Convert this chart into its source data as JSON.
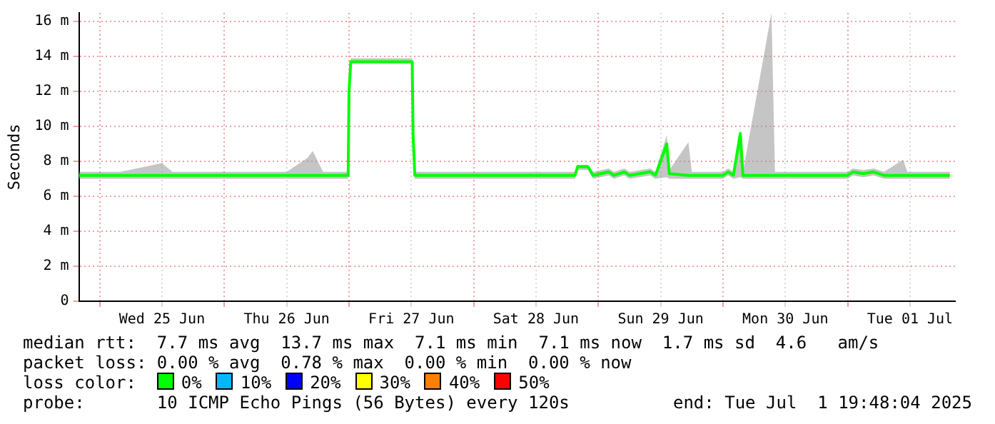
{
  "chart_data": {
    "type": "line",
    "ylabel": "Seconds",
    "legend_title": "loss color:",
    "legend": "bottom",
    "grid": true,
    "marker": "none",
    "line_style": "solid",
    "annotations": [
      "median rtt:  7.7 ms avg  13.7 ms max  7.1 ms min  7.1 ms now  1.7 ms sd  4.6   am/s",
      "packet loss: 0.00 % avg  0.78 % max  0.00 % min  0.00 % now",
      "probe:       10 ICMP Echo Pings (56 Bytes) every 120s",
      "end: Tue Jul  1 19:48:04 2025"
    ],
    "xlim": [
      "2025-06-24T20:00",
      "2025-07-01T20:40"
    ],
    "xticks": [
      {
        "value": "2025-06-25T00:00",
        "label": null
      },
      {
        "value": "2025-06-25T12:00",
        "label": "Wed 25 Jun"
      },
      {
        "value": "2025-06-26T00:00",
        "label": null
      },
      {
        "value": "2025-06-26T12:00",
        "label": "Thu 26 Jun"
      },
      {
        "value": "2025-06-27T00:00",
        "label": null
      },
      {
        "value": "2025-06-27T12:00",
        "label": "Fri 27 Jun"
      },
      {
        "value": "2025-06-28T00:00",
        "label": null
      },
      {
        "value": "2025-06-28T12:00",
        "label": "Sat 28 Jun"
      },
      {
        "value": "2025-06-29T00:00",
        "label": null
      },
      {
        "value": "2025-06-29T12:00",
        "label": "Sun 29 Jun"
      },
      {
        "value": "2025-06-30T00:00",
        "label": null
      },
      {
        "value": "2025-06-30T12:00",
        "label": "Mon 30 Jun"
      },
      {
        "value": "2025-07-01T00:00",
        "label": null
      },
      {
        "value": "2025-07-01T12:00",
        "label": "Tue 01 Jul"
      }
    ],
    "ylim": [
      0,
      16.5
    ],
    "yticks": [
      0,
      {
        "value": 2,
        "label": "2 m"
      },
      {
        "value": 4,
        "label": "4 m"
      },
      {
        "value": 6,
        "label": "6 m"
      },
      {
        "value": 8,
        "label": "8 m"
      },
      {
        "value": 10,
        "label": "10 m"
      },
      {
        "value": 12,
        "label": "12 m"
      },
      {
        "value": 14,
        "label": "14 m"
      },
      {
        "value": 16,
        "label": "16 m"
      }
    ],
    "x": [
      "2025-06-24T20:00",
      "2025-06-25T04:00",
      "2025-06-25T12:00",
      "2025-06-25T14:00",
      "2025-06-26T00:00",
      "2025-06-26T12:00",
      "2025-06-26T16:00",
      "2025-06-26T17:00",
      "2025-06-26T19:00",
      "2025-06-26T23:50",
      "2025-06-27T00:00",
      "2025-06-27T00:20",
      "2025-06-27T06:00",
      "2025-06-27T12:10",
      "2025-06-27T12:20",
      "2025-06-27T12:40",
      "2025-06-28T00:00",
      "2025-06-28T12:00",
      "2025-06-28T19:30",
      "2025-06-28T20:00",
      "2025-06-28T22:00",
      "2025-06-28T23:00",
      "2025-06-29T02:00",
      "2025-06-29T03:00",
      "2025-06-29T05:00",
      "2025-06-29T06:00",
      "2025-06-29T10:00",
      "2025-06-29T11:00",
      "2025-06-29T13:10",
      "2025-06-29T13:40",
      "2025-06-29T17:20",
      "2025-06-29T18:00",
      "2025-06-30T00:00",
      "2025-06-30T01:00",
      "2025-06-30T02:00",
      "2025-06-30T03:20",
      "2025-06-30T03:50",
      "2025-06-30T09:20",
      "2025-06-30T10:00",
      "2025-07-01T00:00",
      "2025-07-01T01:00",
      "2025-07-01T03:00",
      "2025-07-01T05:00",
      "2025-07-01T07:00",
      "2025-07-01T10:40",
      "2025-07-01T11:30",
      "2025-07-01T19:40"
    ],
    "series": [
      {
        "name": "0%",
        "color": "#00ff00",
        "values": [
          7.2,
          7.2,
          7.2,
          7.2,
          7.2,
          7.2,
          7.2,
          7.2,
          7.2,
          7.2,
          12.0,
          13.7,
          13.7,
          13.7,
          9.5,
          7.2,
          7.2,
          7.2,
          7.2,
          7.7,
          7.7,
          7.2,
          7.4,
          7.2,
          7.4,
          7.2,
          7.4,
          7.2,
          9.0,
          7.3,
          7.2,
          7.2,
          7.2,
          7.4,
          7.2,
          9.6,
          7.2,
          7.2,
          7.2,
          7.2,
          7.4,
          7.3,
          7.4,
          7.2,
          7.2,
          7.2,
          7.2
        ],
        "lower": [
          7.0,
          7.0,
          7.0,
          7.0,
          7.0,
          7.0,
          7.0,
          7.0,
          7.0,
          7.0,
          12.0,
          13.6,
          13.6,
          13.6,
          9.5,
          7.0,
          7.0,
          7.0,
          7.0,
          7.5,
          7.5,
          7.0,
          7.2,
          7.0,
          7.2,
          7.0,
          7.2,
          7.0,
          7.1,
          7.0,
          7.0,
          7.0,
          7.0,
          7.2,
          7.0,
          7.1,
          7.0,
          7.0,
          7.0,
          7.0,
          7.2,
          7.1,
          7.2,
          7.0,
          7.0,
          7.0,
          7.0
        ],
        "upper": [
          7.4,
          7.4,
          7.9,
          7.4,
          7.4,
          7.4,
          8.2,
          8.6,
          7.4,
          7.4,
          12.0,
          13.9,
          13.9,
          13.9,
          9.5,
          7.4,
          7.4,
          7.4,
          7.4,
          7.8,
          7.8,
          7.4,
          7.6,
          7.4,
          7.6,
          7.4,
          7.6,
          7.4,
          9.5,
          7.5,
          9.1,
          7.4,
          7.4,
          7.6,
          7.4,
          9.8,
          7.4,
          16.5,
          7.4,
          7.4,
          7.6,
          7.5,
          7.6,
          7.4,
          8.1,
          7.4,
          7.4
        ]
      },
      {
        "name": "10%",
        "color": "#00b8ff",
        "values": [
          null,
          null,
          null,
          null,
          null,
          null,
          null,
          null,
          null,
          null,
          null,
          null,
          null,
          null,
          null,
          null,
          null,
          null,
          null,
          null,
          null,
          null,
          null,
          null,
          null,
          null,
          null,
          null,
          null,
          null,
          null,
          null,
          null,
          null,
          null,
          null,
          null,
          null,
          null,
          null,
          null,
          null,
          null,
          null,
          null,
          null,
          null
        ]
      },
      {
        "name": "20%",
        "color": "#0000ff",
        "values": [
          null,
          null,
          null,
          null,
          null,
          null,
          null,
          null,
          null,
          null,
          null,
          null,
          null,
          null,
          null,
          null,
          null,
          null,
          null,
          null,
          null,
          null,
          null,
          null,
          null,
          null,
          null,
          null,
          null,
          null,
          null,
          null,
          null,
          null,
          null,
          null,
          null,
          null,
          null,
          null,
          null,
          null,
          null,
          null,
          null,
          null,
          null
        ]
      },
      {
        "name": "30%",
        "color": "#ffff00",
        "values": [
          null,
          null,
          null,
          null,
          null,
          null,
          null,
          null,
          null,
          null,
          null,
          null,
          null,
          null,
          null,
          null,
          null,
          null,
          null,
          null,
          null,
          null,
          null,
          null,
          null,
          null,
          null,
          null,
          null,
          null,
          null,
          null,
          null,
          null,
          null,
          null,
          null,
          null,
          null,
          null,
          null,
          null,
          null,
          null,
          null,
          null,
          null
        ]
      },
      {
        "name": "40%",
        "color": "#ff8000",
        "values": [
          null,
          null,
          null,
          null,
          null,
          null,
          null,
          null,
          null,
          null,
          null,
          null,
          null,
          null,
          null,
          null,
          null,
          null,
          null,
          null,
          null,
          null,
          null,
          null,
          null,
          null,
          null,
          null,
          null,
          null,
          null,
          null,
          null,
          null,
          null,
          null,
          null,
          null,
          null,
          null,
          null,
          null,
          null,
          null,
          null,
          null,
          null
        ]
      },
      {
        "name": "50%",
        "color": "#ff0000",
        "values": [
          null,
          null,
          null,
          null,
          null,
          null,
          null,
          null,
          null,
          null,
          null,
          null,
          null,
          null,
          null,
          null,
          null,
          null,
          null,
          null,
          null,
          null,
          null,
          null,
          null,
          null,
          null,
          null,
          null,
          null,
          null,
          null,
          null,
          null,
          null,
          null,
          null,
          null,
          null,
          null,
          null,
          null,
          null,
          null,
          null,
          null,
          null
        ]
      }
    ]
  }
}
